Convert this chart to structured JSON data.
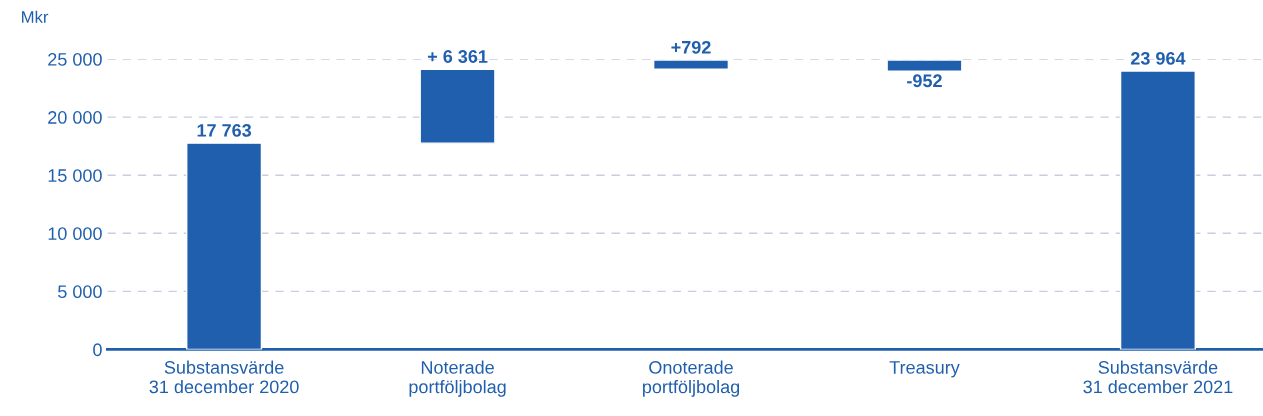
{
  "chart_data": {
    "type": "bar",
    "ylabel": "Mkr",
    "categories": [
      "Substansvärde\n31 december 2020",
      "Noterade\nportföljbolag",
      "Onoterade\nportföljbolag",
      "Treasury",
      "Substansvärde\n31 december 2021"
    ],
    "base": [
      0,
      17763,
      24124,
      24916,
      0
    ],
    "values": [
      17763,
      6361,
      792,
      -952,
      23964
    ],
    "value_labels": [
      "17 763",
      "+ 6 361",
      "+792",
      "-952",
      "23 964"
    ],
    "color": "#1f5fad",
    "ylim": [
      0,
      25000
    ],
    "yticks": [
      {
        "value": 0,
        "label": "0"
      },
      {
        "value": 5000,
        "label": "5 000"
      },
      {
        "value": 10000,
        "label": "10 000"
      },
      {
        "value": 15000,
        "label": "15 000"
      },
      {
        "value": 20000,
        "label": "20 000"
      },
      {
        "value": 25000,
        "label": "25 000"
      }
    ],
    "grid": "y",
    "line_style": "dashed",
    "legend": false
  }
}
